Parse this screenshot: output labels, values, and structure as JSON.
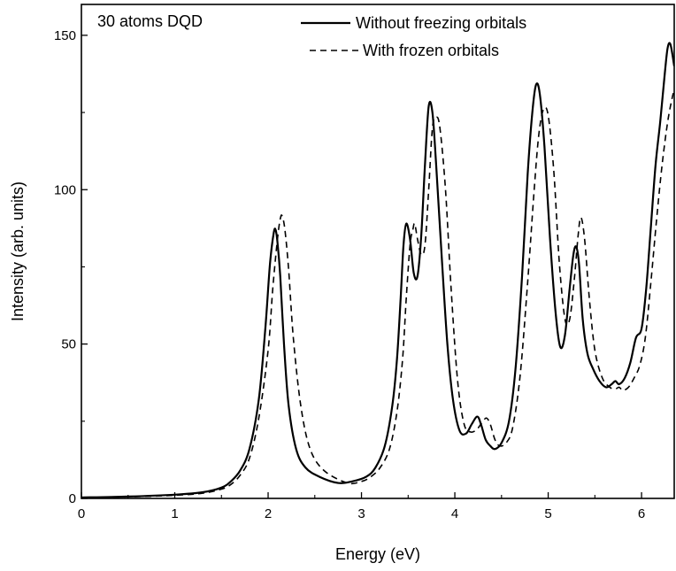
{
  "chart_data": {
    "type": "line",
    "title": "",
    "annotation": "30 atoms DQD",
    "xlabel": "Energy (eV)",
    "ylabel": "Intensity (arb. units)",
    "xlim": [
      0,
      6.35
    ],
    "ylim": [
      0,
      160
    ],
    "xticks": [
      0,
      1,
      2,
      3,
      4,
      5,
      6
    ],
    "yticks": [
      0,
      50,
      100,
      150
    ],
    "grid": false,
    "legend_position": "top-right",
    "series": [
      {
        "name": "Without freezing orbitals",
        "style": "solid",
        "color": "#000000",
        "x": [
          0,
          0.5,
          1.0,
          1.3,
          1.5,
          1.6,
          1.7,
          1.8,
          1.9,
          1.97,
          2.02,
          2.06,
          2.08,
          2.1,
          2.13,
          2.17,
          2.22,
          2.3,
          2.4,
          2.55,
          2.75,
          2.9,
          3.05,
          3.15,
          3.25,
          3.33,
          3.38,
          3.42,
          3.45,
          3.48,
          3.52,
          3.56,
          3.6,
          3.64,
          3.68,
          3.72,
          3.76,
          3.8,
          3.86,
          3.92,
          3.98,
          4.05,
          4.12,
          4.18,
          4.24,
          4.28,
          4.33,
          4.38,
          4.43,
          4.5,
          4.58,
          4.65,
          4.72,
          4.78,
          4.83,
          4.87,
          4.91,
          4.96,
          5.02,
          5.08,
          5.13,
          5.18,
          5.23,
          5.27,
          5.3,
          5.33,
          5.37,
          5.42,
          5.48,
          5.55,
          5.62,
          5.68,
          5.72,
          5.76,
          5.82,
          5.88,
          5.94,
          6.0,
          6.05,
          6.1,
          6.15,
          6.2,
          6.25,
          6.28,
          6.31,
          6.35
        ],
        "y": [
          0.3,
          0.6,
          1.2,
          2.0,
          3.5,
          5.5,
          9,
          16,
          32,
          55,
          76,
          86,
          87,
          83,
          72,
          50,
          30,
          16,
          10,
          7,
          5,
          5.5,
          7,
          10,
          17,
          30,
          45,
          65,
          82,
          89,
          84,
          73,
          72,
          85,
          108,
          127,
          125,
          108,
          78,
          50,
          32,
          22,
          21,
          24,
          26.5,
          24,
          19,
          17,
          16,
          18,
          25,
          42,
          72,
          105,
          125,
          134,
          131,
          114,
          84,
          60,
          49,
          53,
          68,
          79,
          81.5,
          76,
          58,
          47,
          42,
          38,
          36,
          37,
          38,
          37,
          39,
          44,
          52,
          55,
          68,
          88,
          108,
          122,
          138,
          146,
          147,
          140
        ]
      },
      {
        "name": "With frozen orbitals",
        "style": "dashed",
        "color": "#000000",
        "x": [
          0,
          0.5,
          1.0,
          1.3,
          1.5,
          1.6,
          1.7,
          1.8,
          1.9,
          2.0,
          2.05,
          2.1,
          2.13,
          2.15,
          2.18,
          2.22,
          2.27,
          2.35,
          2.45,
          2.6,
          2.85,
          3.0,
          3.1,
          3.2,
          3.3,
          3.38,
          3.44,
          3.48,
          3.52,
          3.55,
          3.57,
          3.6,
          3.64,
          3.68,
          3.72,
          3.76,
          3.8,
          3.84,
          3.9,
          3.96,
          4.03,
          4.1,
          4.17,
          4.24,
          4.3,
          4.34,
          4.38,
          4.43,
          4.48,
          4.55,
          4.62,
          4.7,
          4.78,
          4.85,
          4.9,
          4.95,
          5.0,
          5.06,
          5.12,
          5.18,
          5.23,
          5.28,
          5.32,
          5.35,
          5.39,
          5.44,
          5.5,
          5.58,
          5.66,
          5.72,
          5.76,
          5.8,
          5.86,
          5.92,
          5.98,
          6.04,
          6.1,
          6.16,
          6.22,
          6.28,
          6.33,
          6.35
        ],
        "y": [
          0.2,
          0.5,
          1.0,
          1.7,
          3.0,
          4.5,
          7.5,
          13,
          26,
          48,
          68,
          84,
          90.5,
          91.5,
          87,
          74,
          52,
          30,
          16,
          9,
          5,
          5.5,
          7,
          10,
          16,
          28,
          45,
          65,
          82,
          87,
          89,
          84,
          79,
          82,
          100,
          120,
          123.5,
          120,
          100,
          68,
          38,
          24,
          21.5,
          22.5,
          25,
          26,
          24,
          19,
          17,
          18,
          23,
          40,
          70,
          100,
          118,
          126,
          124,
          106,
          76,
          58,
          58,
          71,
          85,
          91,
          84,
          65,
          48,
          39,
          36,
          35.5,
          36,
          35,
          36,
          39,
          43,
          52,
          70,
          90,
          108,
          122,
          130,
          132
        ]
      }
    ]
  }
}
